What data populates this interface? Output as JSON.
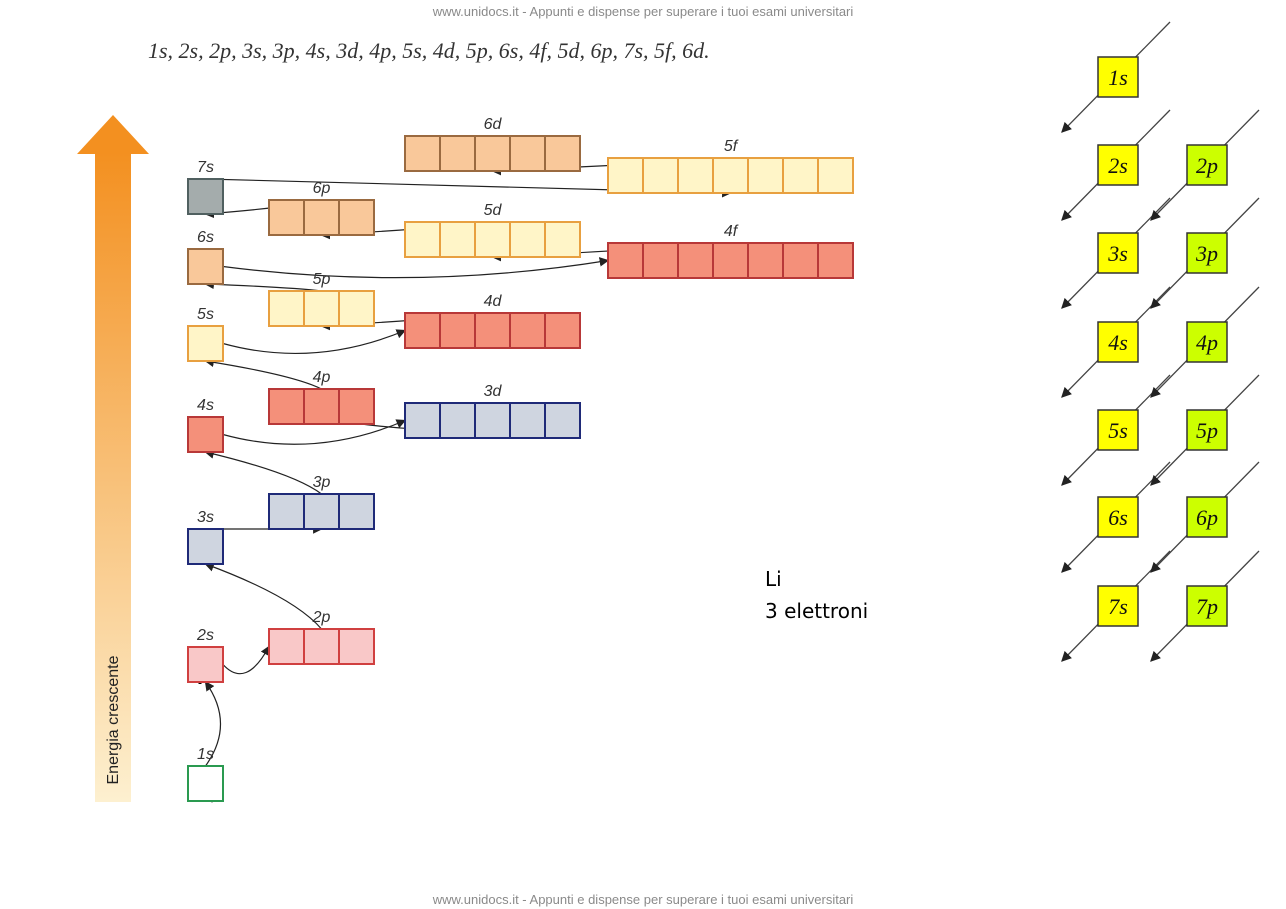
{
  "watermark_top": "www.unidocs.it - Appunti e dispense per superare i tuoi esami universitari",
  "sequence": "1s, 2s, 2p, 3s, 3p, 4s, 3d, 4p, 5s, 4d, 5p, 6s, 4f, 5d, 6p, 7s, 5f, 6d.",
  "energy_label": "Energia crescente",
  "orbitals": [
    {
      "label": "1s"
    },
    {
      "label": "2s"
    },
    {
      "label": "2p"
    },
    {
      "label": "3s"
    },
    {
      "label": "3p"
    },
    {
      "label": "4s"
    },
    {
      "label": "3d"
    },
    {
      "label": "4p"
    },
    {
      "label": "5s"
    },
    {
      "label": "4d"
    },
    {
      "label": "5p"
    },
    {
      "label": "6s"
    },
    {
      "label": "4f"
    },
    {
      "label": "5d"
    },
    {
      "label": "6p"
    },
    {
      "label": "7s"
    },
    {
      "label": "5f"
    },
    {
      "label": "6d"
    }
  ],
  "element": "Li",
  "electrons": "3 elettroni",
  "grid": {
    "s": [
      "1s",
      "2s",
      "3s",
      "4s",
      "5s",
      "6s",
      "7s"
    ],
    "p": [
      "2p",
      "3p",
      "4p",
      "5p",
      "6p",
      "7p"
    ]
  },
  "watermark_bottom": "www.unidocs.it - Appunti e dispense per superare i tuoi esami universitari"
}
